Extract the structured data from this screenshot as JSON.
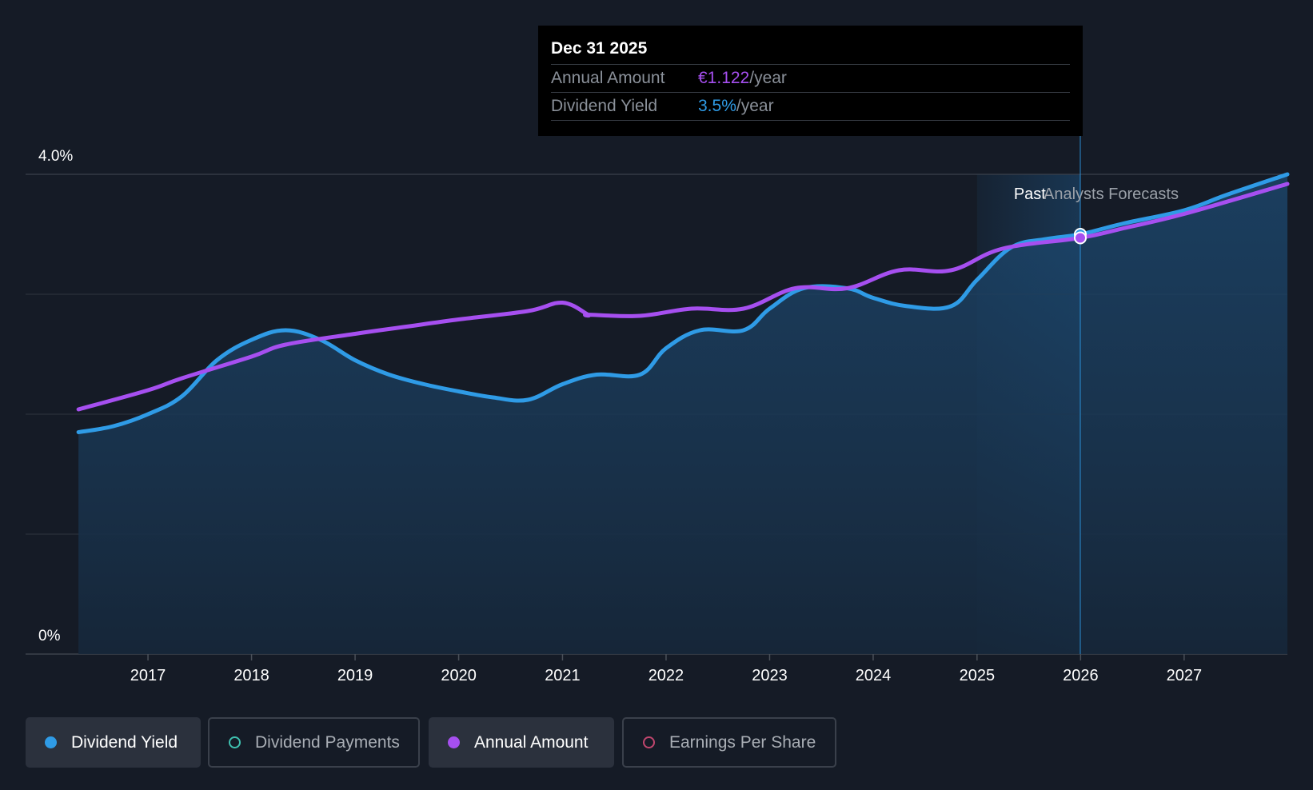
{
  "tooltip": {
    "date": "Dec 31 2025",
    "rows": [
      {
        "name": "Annual Amount",
        "value": "€1.122",
        "unit": "/year",
        "color": "#a64ff0"
      },
      {
        "name": "Dividend Yield",
        "value": "3.5%",
        "unit": "/year",
        "color": "#2f9be6"
      }
    ]
  },
  "regions": {
    "past": "Past",
    "forecast": "Analysts Forecasts"
  },
  "legend": [
    {
      "label": "Dividend Yield",
      "color": "#2f9be6",
      "active": true,
      "filled": true
    },
    {
      "label": "Dividend Payments",
      "color": "#3fc1b0",
      "active": false,
      "filled": false
    },
    {
      "label": "Annual Amount",
      "color": "#a64ff0",
      "active": true,
      "filled": true
    },
    {
      "label": "Earnings Per Share",
      "color": "#c0466e",
      "active": false,
      "filled": false
    }
  ],
  "chart_data": {
    "type": "line",
    "y_axis_labels": [
      "4.0%",
      "0%"
    ],
    "ylim": [
      0,
      4.0
    ],
    "x_ticks": [
      "2017",
      "2018",
      "2019",
      "2020",
      "2021",
      "2022",
      "2023",
      "2024",
      "2025",
      "2026",
      "2027"
    ],
    "x_range": [
      "2016-04-25",
      "2027-12-31"
    ],
    "past_forecast_boundary": "2025-12-31",
    "highlight_date": "2025-12-31",
    "grid": true,
    "series": [
      {
        "name": "Dividend Yield",
        "color": "#2f9be6",
        "area": true,
        "points": [
          [
            "2016-05-01",
            1.85
          ],
          [
            "2016-09-01",
            1.9
          ],
          [
            "2017-01-01",
            2.0
          ],
          [
            "2017-05-01",
            2.15
          ],
          [
            "2017-09-01",
            2.45
          ],
          [
            "2018-01-01",
            2.62
          ],
          [
            "2018-05-01",
            2.7
          ],
          [
            "2018-09-01",
            2.62
          ],
          [
            "2019-01-01",
            2.45
          ],
          [
            "2019-05-01",
            2.33
          ],
          [
            "2019-09-01",
            2.25
          ],
          [
            "2020-01-01",
            2.19
          ],
          [
            "2020-05-01",
            2.14
          ],
          [
            "2020-09-01",
            2.12
          ],
          [
            "2021-01-01",
            2.25
          ],
          [
            "2021-05-01",
            2.33
          ],
          [
            "2021-10-01",
            2.33
          ],
          [
            "2022-01-01",
            2.55
          ],
          [
            "2022-05-01",
            2.7
          ],
          [
            "2022-10-01",
            2.7
          ],
          [
            "2023-01-01",
            2.88
          ],
          [
            "2023-05-01",
            3.05
          ],
          [
            "2023-10-01",
            3.05
          ],
          [
            "2024-01-01",
            2.97
          ],
          [
            "2024-05-01",
            2.9
          ],
          [
            "2024-10-01",
            2.9
          ],
          [
            "2025-01-01",
            3.12
          ],
          [
            "2025-05-01",
            3.39
          ],
          [
            "2025-09-01",
            3.46
          ],
          [
            "2025-12-31",
            3.5
          ],
          [
            "2026-06-01",
            3.59
          ],
          [
            "2027-01-01",
            3.7
          ],
          [
            "2027-06-01",
            3.83
          ],
          [
            "2027-12-31",
            4.0
          ]
        ]
      },
      {
        "name": "Annual Amount",
        "color": "#a64ff0",
        "area": false,
        "points": [
          [
            "2016-05-01",
            2.04
          ],
          [
            "2017-01-01",
            2.2
          ],
          [
            "2017-05-01",
            2.3
          ],
          [
            "2018-01-01",
            2.48
          ],
          [
            "2018-05-01",
            2.58
          ],
          [
            "2019-01-01",
            2.67
          ],
          [
            "2019-07-01",
            2.73
          ],
          [
            "2020-01-01",
            2.79
          ],
          [
            "2020-09-01",
            2.86
          ],
          [
            "2021-01-01",
            2.93
          ],
          [
            "2021-04-01",
            2.83
          ],
          [
            "2021-04-02",
            2.83
          ],
          [
            "2021-10-01",
            2.82
          ],
          [
            "2022-04-01",
            2.88
          ],
          [
            "2022-10-01",
            2.88
          ],
          [
            "2023-04-01",
            3.05
          ],
          [
            "2023-10-01",
            3.05
          ],
          [
            "2024-04-01",
            3.2
          ],
          [
            "2024-10-01",
            3.2
          ],
          [
            "2025-04-01",
            3.38
          ],
          [
            "2025-12-31",
            3.47
          ],
          [
            "2026-06-01",
            3.55
          ],
          [
            "2027-01-01",
            3.67
          ],
          [
            "2027-12-31",
            3.92
          ]
        ]
      }
    ]
  }
}
